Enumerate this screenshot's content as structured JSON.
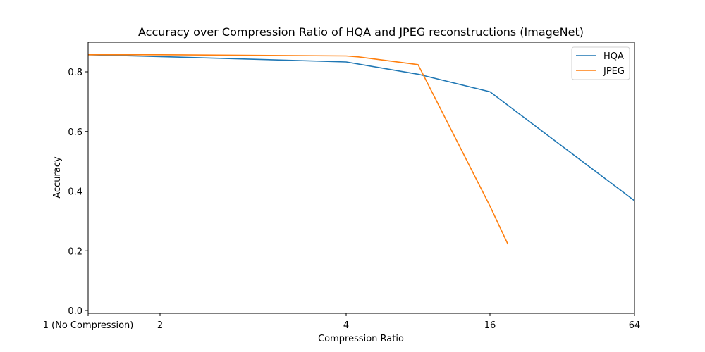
{
  "chart_data": {
    "type": "line",
    "title": "Accuracy over Compression Ratio of HQA and JPEG reconstructions (ImageNet)",
    "xlabel": "Compression Ratio",
    "ylabel": "Accuracy",
    "x_scale": "log (non-uniform categorical spacing)",
    "x_ticks": [
      {
        "value": 1,
        "label": "1 (No Compression)"
      },
      {
        "value": 2,
        "label": "2"
      },
      {
        "value": 4,
        "label": "4"
      },
      {
        "value": 16,
        "label": "16"
      },
      {
        "value": 64,
        "label": "64"
      }
    ],
    "y_ticks": [
      "0.0",
      "0.2",
      "0.4",
      "0.6",
      "0.8"
    ],
    "ylim": [
      0.0,
      0.9
    ],
    "xlim": [
      1,
      64
    ],
    "grid": false,
    "legend_position": "top-right",
    "series": [
      {
        "name": "HQA",
        "color": "#1f77b4",
        "points": [
          {
            "x": 1,
            "y": 0.857
          },
          {
            "x": 2,
            "y": 0.851
          },
          {
            "x": 4,
            "y": 0.833
          },
          {
            "x": 8,
            "y": 0.792
          },
          {
            "x": 16,
            "y": 0.733
          },
          {
            "x": 64,
            "y": 0.368
          }
        ]
      },
      {
        "name": "JPEG",
        "color": "#ff7f0e",
        "points": [
          {
            "x": 1,
            "y": 0.857
          },
          {
            "x": 2,
            "y": 0.857
          },
          {
            "x": 4,
            "y": 0.853
          },
          {
            "x": 4.5,
            "y": 0.85
          },
          {
            "x": 8,
            "y": 0.824
          },
          {
            "x": 16,
            "y": 0.35
          },
          {
            "x": 19,
            "y": 0.222
          }
        ]
      }
    ]
  }
}
